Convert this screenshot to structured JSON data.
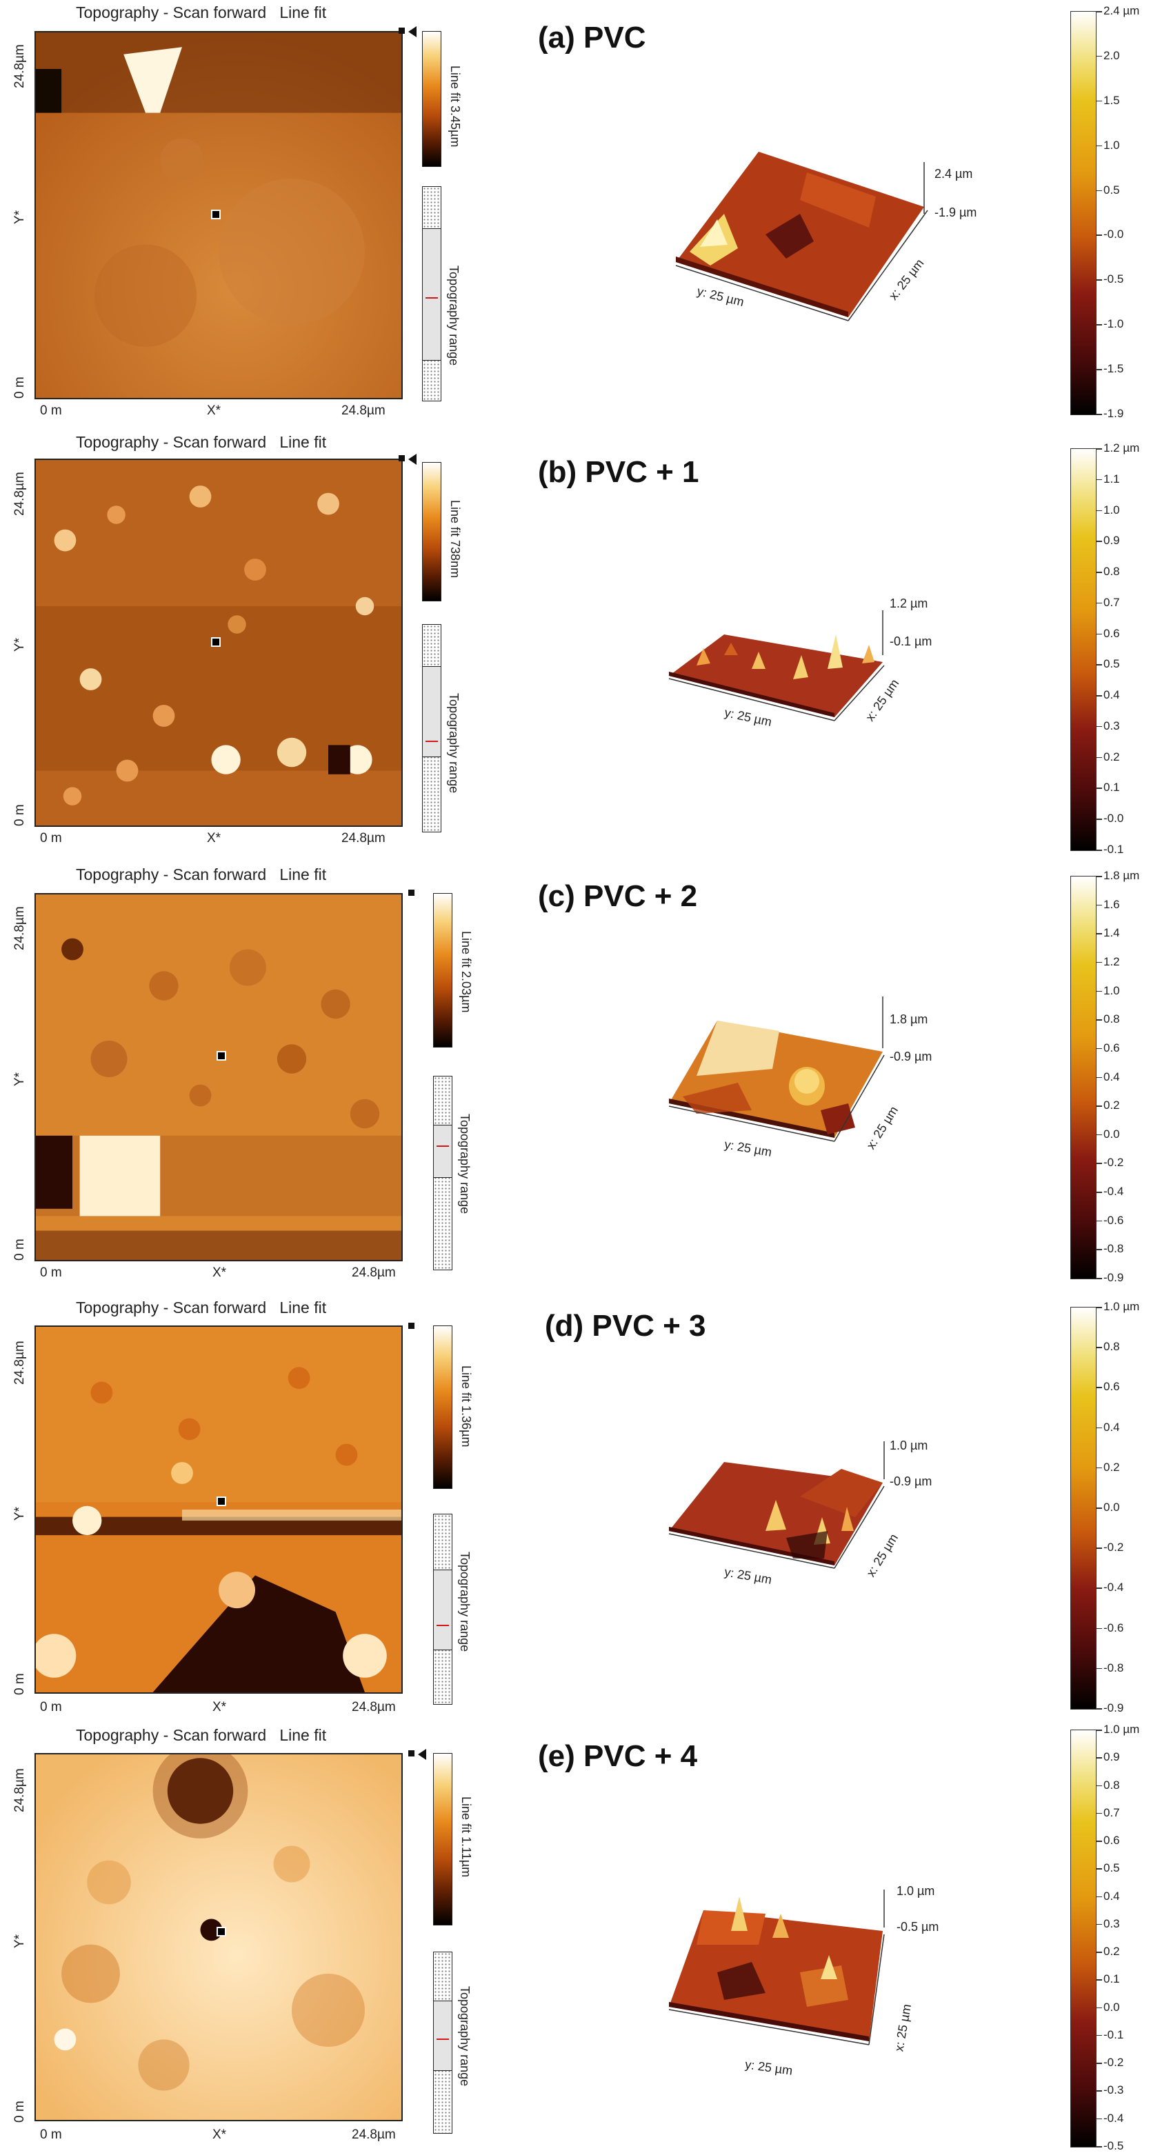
{
  "panels": [
    {
      "scan_title": "Topography - Scan forward   Line fit",
      "y_top": "24.8µm",
      "y_mid": "Y*",
      "y_bottom": "0 m",
      "x_left": "0 m",
      "x_mid": "X*",
      "x_right": "24.8µm",
      "minibar_label": "Line fit 3.45µm",
      "range_label": "Topography range",
      "label": "(a) PVC",
      "z_top": "2.4 µm",
      "z_bottom": "-1.9 µm",
      "y_dim": "y: 25 µm",
      "x_dim": "x: 25 µm",
      "colorbar": [
        "2.4 µm",
        "2.0",
        "1.5",
        "1.0",
        "0.5",
        "-0.0",
        "-0.5",
        "-1.0",
        "-1.5",
        "-1.9"
      ]
    },
    {
      "scan_title": "Topography - Scan forward   Line fit",
      "y_top": "24.8µm",
      "y_mid": "Y*",
      "y_bottom": "0 m",
      "x_left": "0 m",
      "x_mid": "X*",
      "x_right": "24.8µm",
      "minibar_label": "Line fit 738nm",
      "range_label": "Topography range",
      "label": "(b) PVC + 1",
      "z_top": "1.2 µm",
      "z_bottom": "-0.1 µm",
      "y_dim": "y: 25 µm",
      "x_dim": "x: 25 µm",
      "colorbar": [
        "1.2 µm",
        "1.1",
        "1.0",
        "0.9",
        "0.8",
        "0.7",
        "0.6",
        "0.5",
        "0.4",
        "0.3",
        "0.2",
        "0.1",
        "-0.0",
        "-0.1"
      ]
    },
    {
      "scan_title": "Topography - Scan forward   Line fit",
      "y_top": "24.8µm",
      "y_mid": "Y*",
      "y_bottom": "0 m",
      "x_left": "0 m",
      "x_mid": "X*",
      "x_right": "24.8µm",
      "minibar_label": "Line fit 2.03µm",
      "range_label": "Topography range",
      "label": "(c) PVC + 2",
      "z_top": "1.8 µm",
      "z_bottom": "-0.9 µm",
      "y_dim": "y: 25 µm",
      "x_dim": "x: 25 µm",
      "colorbar": [
        "1.8 µm",
        "1.6",
        "1.4",
        "1.2",
        "1.0",
        "0.8",
        "0.6",
        "0.4",
        "0.2",
        "0.0",
        "-0.2",
        "-0.4",
        "-0.6",
        "-0.8",
        "-0.9"
      ]
    },
    {
      "scan_title": "Topography - Scan forward   Line fit",
      "y_top": "24.8µm",
      "y_mid": "Y*",
      "y_bottom": "0 m",
      "x_left": "0 m",
      "x_mid": "X*",
      "x_right": "24.8µm",
      "minibar_label": "Line fit 1.36µm",
      "range_label": "Topography range",
      "label": "(d) PVC + 3",
      "z_top": "1.0 µm",
      "z_bottom": "-0.9 µm",
      "y_dim": "y: 25 µm",
      "x_dim": "x: 25 µm",
      "colorbar": [
        "1.0 µm",
        "0.8",
        "0.6",
        "0.4",
        "0.2",
        "0.0",
        "-0.2",
        "-0.4",
        "-0.6",
        "-0.8",
        "-0.9"
      ]
    },
    {
      "scan_title": "Topography - Scan forward   Line fit",
      "y_top": "24.8µm",
      "y_mid": "Y*",
      "y_bottom": "0 m",
      "x_left": "0 m",
      "x_mid": "X*",
      "x_right": "24.8µm",
      "minibar_label": "Line fit 1.11µm",
      "range_label": "Topography range",
      "label": "(e) PVC + 4",
      "z_top": "1.0 µm",
      "z_bottom": "-0.5 µm",
      "y_dim": "y: 25 µm",
      "x_dim": "x: 25 µm",
      "colorbar": [
        "1.0 µm",
        "0.9",
        "0.8",
        "0.7",
        "0.6",
        "0.5",
        "0.4",
        "0.3",
        "0.2",
        "0.1",
        "0.0",
        "-0.1",
        "-0.2",
        "-0.3",
        "-0.4",
        "-0.5"
      ]
    }
  ]
}
